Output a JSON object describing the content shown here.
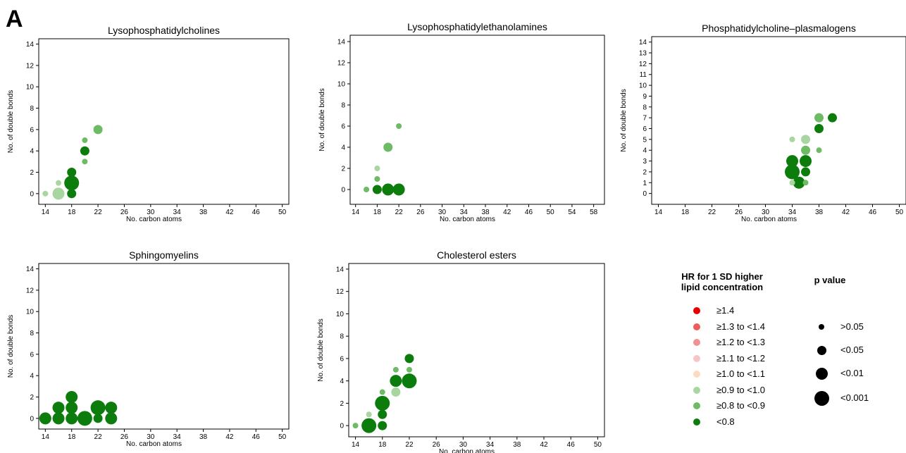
{
  "panel_letter": "A",
  "legend": {
    "hr_title_line1": "HR for 1 SD higher",
    "hr_title_line2": "lipid concentration",
    "hr_items": [
      {
        "label": "≥1.4",
        "color": "#e60000"
      },
      {
        "label": "≥1.3 to <1.4",
        "color": "#ee5c5c"
      },
      {
        "label": "≥1.2 to <1.3",
        "color": "#f29191"
      },
      {
        "label": "≥1.1 to <1.2",
        "color": "#f6c6c6"
      },
      {
        "label": "≥1.0 to <1.1",
        "color": "#fbdcc0"
      },
      {
        "label": "≥0.9 to <1.0",
        "color": "#a9d6a0"
      },
      {
        "label": "≥0.8 to <0.9",
        "color": "#6dbb65"
      },
      {
        "label": "<0.8",
        "color": "#0c7d0c"
      }
    ],
    "p_title": "p value",
    "p_items": [
      {
        "label": ">0.05"
      },
      {
        "label": "<0.05"
      },
      {
        "label": "<0.01"
      },
      {
        "label": "<0.001"
      }
    ]
  },
  "chart_data": [
    {
      "type": "scatter",
      "title": "Lysophosphatidylcholines",
      "xlabel": "No. carbon atoms",
      "ylabel": "No. of double bonds",
      "xlim": [
        13,
        51
      ],
      "ylim": [
        -1,
        14.5
      ],
      "xticks": [
        14,
        18,
        22,
        26,
        30,
        34,
        38,
        42,
        46,
        50
      ],
      "yticks": [
        0,
        2,
        4,
        6,
        8,
        10,
        12,
        14
      ],
      "points": [
        {
          "x": 14,
          "y": 0,
          "hr": "0.9-1.0",
          "p": ">0.05"
        },
        {
          "x": 16,
          "y": 0,
          "hr": "0.9-1.0",
          "p": "<0.01"
        },
        {
          "x": 16,
          "y": 1,
          "hr": "0.9-1.0",
          "p": ">0.05"
        },
        {
          "x": 18,
          "y": 0,
          "hr": "<0.8",
          "p": "<0.05"
        },
        {
          "x": 18,
          "y": 1,
          "hr": "<0.8",
          "p": "<0.001"
        },
        {
          "x": 18,
          "y": 2,
          "hr": "<0.8",
          "p": "<0.05"
        },
        {
          "x": 20,
          "y": 3,
          "hr": "0.8-0.9",
          "p": ">0.05"
        },
        {
          "x": 20,
          "y": 4,
          "hr": "<0.8",
          "p": "<0.05"
        },
        {
          "x": 20,
          "y": 5,
          "hr": "0.8-0.9",
          "p": ">0.05"
        },
        {
          "x": 22,
          "y": 6,
          "hr": "0.8-0.9",
          "p": "<0.05"
        }
      ]
    },
    {
      "type": "scatter",
      "title": "Lysophosphatidylethanolamines",
      "xlabel": "No. carbon atoms",
      "ylabel": "No. of double bonds",
      "xlim": [
        13,
        60
      ],
      "ylim": [
        -1.4,
        14.6
      ],
      "xticks": [
        14,
        18,
        22,
        26,
        30,
        34,
        38,
        42,
        46,
        50,
        54,
        58
      ],
      "yticks": [
        0,
        2,
        4,
        6,
        8,
        10,
        12,
        14
      ],
      "points": [
        {
          "x": 16,
          "y": 0,
          "hr": "0.8-0.9",
          "p": ">0.05"
        },
        {
          "x": 18,
          "y": 0,
          "hr": "<0.8",
          "p": "<0.05"
        },
        {
          "x": 18,
          "y": 1,
          "hr": "0.8-0.9",
          "p": ">0.05"
        },
        {
          "x": 18,
          "y": 2,
          "hr": "0.9-1.0",
          "p": ">0.05"
        },
        {
          "x": 20,
          "y": 0,
          "hr": "<0.8",
          "p": "<0.01"
        },
        {
          "x": 20,
          "y": 4,
          "hr": "0.8-0.9",
          "p": "<0.05"
        },
        {
          "x": 22,
          "y": 0,
          "hr": "<0.8",
          "p": "<0.01"
        },
        {
          "x": 22,
          "y": 6,
          "hr": "0.8-0.9",
          "p": ">0.05"
        }
      ]
    },
    {
      "type": "scatter",
      "title": "Phosphatidylcholine–plasmalogens",
      "xlabel": "No. carbon atoms",
      "ylabel": "No. of double bonds",
      "xlim": [
        13,
        51
      ],
      "ylim": [
        -1,
        14.5
      ],
      "xticks": [
        14,
        18,
        22,
        26,
        30,
        34,
        38,
        42,
        46,
        50
      ],
      "yticks": [
        0,
        1,
        2,
        3,
        4,
        5,
        6,
        7,
        8,
        9,
        10,
        11,
        12,
        13,
        14
      ],
      "points": [
        {
          "x": 34,
          "y": 1,
          "hr": "0.9-1.0",
          "p": ">0.05"
        },
        {
          "x": 34,
          "y": 2,
          "hr": "<0.8",
          "p": "<0.001"
        },
        {
          "x": 34,
          "y": 3,
          "hr": "<0.8",
          "p": "<0.01"
        },
        {
          "x": 34,
          "y": 5,
          "hr": "0.9-1.0",
          "p": ">0.05"
        },
        {
          "x": 35,
          "y": 1,
          "hr": "<0.8",
          "p": "<0.01"
        },
        {
          "x": 36,
          "y": 1,
          "hr": "0.8-0.9",
          "p": ">0.05"
        },
        {
          "x": 36,
          "y": 2,
          "hr": "<0.8",
          "p": "<0.05"
        },
        {
          "x": 36,
          "y": 3,
          "hr": "<0.8",
          "p": "<0.01"
        },
        {
          "x": 36,
          "y": 4,
          "hr": "0.8-0.9",
          "p": "<0.05"
        },
        {
          "x": 36,
          "y": 5,
          "hr": "0.9-1.0",
          "p": "<0.05"
        },
        {
          "x": 38,
          "y": 4,
          "hr": "0.8-0.9",
          "p": ">0.05"
        },
        {
          "x": 38,
          "y": 6,
          "hr": "<0.8",
          "p": "<0.05"
        },
        {
          "x": 38,
          "y": 7,
          "hr": "0.8-0.9",
          "p": "<0.05"
        },
        {
          "x": 40,
          "y": 7,
          "hr": "<0.8",
          "p": "<0.05"
        }
      ]
    },
    {
      "type": "scatter",
      "title": "Sphingomyelins",
      "xlabel": "No. carbon atoms",
      "ylabel": "No. of double bonds",
      "xlim": [
        13,
        51
      ],
      "ylim": [
        -1,
        14.5
      ],
      "xticks": [
        14,
        18,
        22,
        26,
        30,
        34,
        38,
        42,
        46,
        50
      ],
      "yticks": [
        0,
        2,
        4,
        6,
        8,
        10,
        12,
        14
      ],
      "points": [
        {
          "x": 14,
          "y": 0,
          "hr": "<0.8",
          "p": "<0.01"
        },
        {
          "x": 16,
          "y": 0,
          "hr": "<0.8",
          "p": "<0.01"
        },
        {
          "x": 16,
          "y": 1,
          "hr": "<0.8",
          "p": "<0.01"
        },
        {
          "x": 18,
          "y": 0,
          "hr": "<0.8",
          "p": "<0.01"
        },
        {
          "x": 18,
          "y": 1,
          "hr": "<0.8",
          "p": "<0.01"
        },
        {
          "x": 18,
          "y": 2,
          "hr": "<0.8",
          "p": "<0.01"
        },
        {
          "x": 20,
          "y": 0,
          "hr": "<0.8",
          "p": "<0.001"
        },
        {
          "x": 22,
          "y": 0,
          "hr": "<0.8",
          "p": "<0.05"
        },
        {
          "x": 22,
          "y": 1,
          "hr": "<0.8",
          "p": "<0.001"
        },
        {
          "x": 24,
          "y": 0,
          "hr": "<0.8",
          "p": "<0.01"
        },
        {
          "x": 24,
          "y": 1,
          "hr": "<0.8",
          "p": "<0.01"
        }
      ]
    },
    {
      "type": "scatter",
      "title": "Cholesterol esters",
      "xlabel": "No. carbon atoms",
      "ylabel": "No. of double bonds",
      "xlim": [
        13,
        51
      ],
      "ylim": [
        -1,
        14.5
      ],
      "xticks": [
        14,
        18,
        22,
        26,
        30,
        34,
        38,
        42,
        46,
        50
      ],
      "yticks": [
        0,
        2,
        4,
        6,
        8,
        10,
        12,
        14
      ],
      "points": [
        {
          "x": 14,
          "y": 0,
          "hr": "0.8-0.9",
          "p": ">0.05"
        },
        {
          "x": 16,
          "y": 0,
          "hr": "<0.8",
          "p": "<0.001"
        },
        {
          "x": 16,
          "y": 1,
          "hr": "0.9-1.0",
          "p": ">0.05"
        },
        {
          "x": 18,
          "y": 0,
          "hr": "<0.8",
          "p": "<0.05"
        },
        {
          "x": 18,
          "y": 1,
          "hr": "<0.8",
          "p": "<0.05"
        },
        {
          "x": 18,
          "y": 2,
          "hr": "<0.8",
          "p": "<0.001"
        },
        {
          "x": 18,
          "y": 3,
          "hr": "0.8-0.9",
          "p": ">0.05"
        },
        {
          "x": 20,
          "y": 3,
          "hr": "0.9-1.0",
          "p": "<0.05"
        },
        {
          "x": 20,
          "y": 4,
          "hr": "<0.8",
          "p": "<0.01"
        },
        {
          "x": 20,
          "y": 5,
          "hr": "0.8-0.9",
          "p": ">0.05"
        },
        {
          "x": 22,
          "y": 4,
          "hr": "<0.8",
          "p": "<0.001"
        },
        {
          "x": 22,
          "y": 5,
          "hr": "0.8-0.9",
          "p": ">0.05"
        },
        {
          "x": 22,
          "y": 6,
          "hr": "<0.8",
          "p": "<0.05"
        }
      ]
    }
  ]
}
